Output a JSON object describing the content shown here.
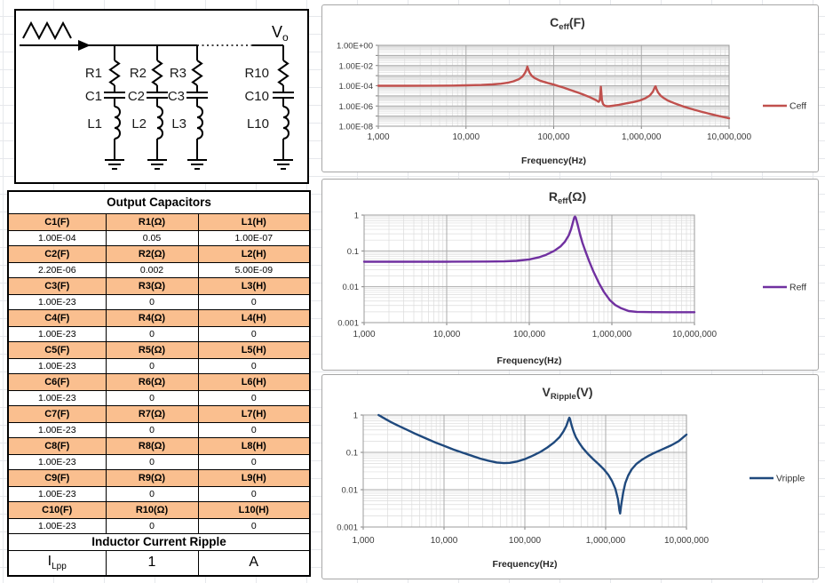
{
  "circuit": {
    "output_main": "V",
    "output_sub": "o",
    "branches": [
      {
        "r": "R1",
        "c": "C1",
        "l": "L1"
      },
      {
        "r": "R2",
        "c": "C2",
        "l": "L2"
      },
      {
        "r": "R3",
        "c": "C3",
        "l": "L3"
      },
      {
        "r": "R10",
        "c": "C10",
        "l": "L10"
      }
    ]
  },
  "table": {
    "title": "Output Capacitors",
    "title_color": "#FF0000",
    "header_fill": "#FABF8F",
    "rows": [
      {
        "c_label": "C1(F)",
        "r_label": "R1(Ω)",
        "l_label": "L1(H)",
        "c": "1.00E-04",
        "r": "0.05",
        "l": "1.00E-07"
      },
      {
        "c_label": "C2(F)",
        "r_label": "R2(Ω)",
        "l_label": "L2(H)",
        "c": "2.20E-06",
        "r": "0.002",
        "l": "5.00E-09"
      },
      {
        "c_label": "C3(F)",
        "r_label": "R3(Ω)",
        "l_label": "L3(H)",
        "c": "1.00E-23",
        "r": "0",
        "l": "0"
      },
      {
        "c_label": "C4(F)",
        "r_label": "R4(Ω)",
        "l_label": "L4(H)",
        "c": "1.00E-23",
        "r": "0",
        "l": "0"
      },
      {
        "c_label": "C5(F)",
        "r_label": "R5(Ω)",
        "l_label": "L5(H)",
        "c": "1.00E-23",
        "r": "0",
        "l": "0"
      },
      {
        "c_label": "C6(F)",
        "r_label": "R6(Ω)",
        "l_label": "L6(H)",
        "c": "1.00E-23",
        "r": "0",
        "l": "0"
      },
      {
        "c_label": "C7(F)",
        "r_label": "R7(Ω)",
        "l_label": "L7(H)",
        "c": "1.00E-23",
        "r": "0",
        "l": "0"
      },
      {
        "c_label": "C8(F)",
        "r_label": "R8(Ω)",
        "l_label": "L8(H)",
        "c": "1.00E-23",
        "r": "0",
        "l": "0"
      },
      {
        "c_label": "C9(F)",
        "r_label": "R9(Ω)",
        "l_label": "L9(H)",
        "c": "1.00E-23",
        "r": "0",
        "l": "0"
      },
      {
        "c_label": "C10(F)",
        "r_label": "R10(Ω)",
        "l_label": "L10(H)",
        "c": "1.00E-23",
        "r": "0",
        "l": "0"
      }
    ],
    "ripple_title": "Inductor Current Ripple",
    "ripple": {
      "label_main": "I",
      "label_sub": "Lpp",
      "value": "1",
      "unit": "A"
    }
  },
  "chart_data": [
    {
      "type": "line",
      "title_main": "C",
      "title_sub": "eff",
      "title_unit": "(F)",
      "xlabel": "Frequency(Hz)",
      "x_scale": "log",
      "y_scale": "log",
      "x_range": [
        1000,
        10000000
      ],
      "y_range": [
        1e-08,
        1
      ],
      "x_ticks": [
        "1,000",
        "10,000",
        "100,000",
        "1,000,000",
        "10,000,000"
      ],
      "y_ticks": [
        "1.00E+00",
        "1.00E-02",
        "1.00E-04",
        "1.00E-06",
        "1.00E-08"
      ],
      "legend": "Ceff",
      "color": "#C0504D",
      "grid": "log-major-minor",
      "legend_position": "right",
      "points": [
        [
          1000,
          0.0001
        ],
        [
          2000,
          0.0001
        ],
        [
          4000,
          0.000102
        ],
        [
          7000,
          0.000105
        ],
        [
          10000,
          0.00011
        ],
        [
          15000,
          0.00012
        ],
        [
          20000,
          0.000135
        ],
        [
          25000,
          0.00016
        ],
        [
          30000,
          0.0002
        ],
        [
          35000,
          0.00028
        ],
        [
          40000,
          0.00045
        ],
        [
          44000,
          0.0008
        ],
        [
          47000,
          0.0018
        ],
        [
          49000,
          0.004
        ],
        [
          50000,
          0.008
        ],
        [
          51500,
          0.004
        ],
        [
          53000,
          0.002
        ],
        [
          56000,
          0.001
        ],
        [
          60000,
          0.0006
        ],
        [
          70000,
          0.00032
        ],
        [
          85000,
          0.00019
        ],
        [
          100000,
          0.00013
        ],
        [
          130000,
          6.5e-05
        ],
        [
          160000,
          3.5e-05
        ],
        [
          200000,
          1.8e-05
        ],
        [
          250000,
          8.5e-06
        ],
        [
          300000,
          4e-06
        ],
        [
          325000,
          2.6e-06
        ],
        [
          335000,
          3.5e-06
        ],
        [
          341000,
          2e-05
        ],
        [
          345000,
          8e-05
        ],
        [
          349000,
          2.5e-05
        ],
        [
          355000,
          4e-06
        ],
        [
          365000,
          1.6e-06
        ],
        [
          380000,
          1.1e-06
        ],
        [
          400000,
          9.5e-07
        ],
        [
          430000,
          9.5e-07
        ],
        [
          470000,
          1.05e-06
        ],
        [
          550000,
          1.3e-06
        ],
        [
          650000,
          1.7e-06
        ],
        [
          800000,
          2.4e-06
        ],
        [
          950000,
          3.4e-06
        ],
        [
          1100000,
          5.5e-06
        ],
        [
          1250000,
          1.1e-05
        ],
        [
          1350000,
          2.5e-05
        ],
        [
          1420000,
          7e-05
        ],
        [
          1450000,
          9e-05
        ],
        [
          1480000,
          5e-05
        ],
        [
          1550000,
          2.2e-05
        ],
        [
          1650000,
          1.1e-05
        ],
        [
          1800000,
          6e-06
        ],
        [
          2000000,
          3.5e-06
        ],
        [
          2400000,
          1.8e-06
        ],
        [
          3000000,
          9e-07
        ],
        [
          4000000,
          4.2e-07
        ],
        [
          5000000,
          2.5e-07
        ],
        [
          7000000,
          1.2e-07
        ],
        [
          10000000,
          6e-08
        ]
      ]
    },
    {
      "type": "line",
      "title_main": "R",
      "title_sub": "eff",
      "title_unit": "(Ω)",
      "xlabel": "Frequency(Hz)",
      "x_scale": "log",
      "y_scale": "log",
      "x_range": [
        1000,
        10000000
      ],
      "y_range": [
        0.001,
        1
      ],
      "x_ticks": [
        "1,000",
        "10,000",
        "100,000",
        "1,000,000",
        "10,000,000"
      ],
      "y_ticks": [
        "1",
        "0.1",
        "0.01",
        "0.001"
      ],
      "legend": "Reff",
      "color": "#7030A0",
      "grid": "log-major-minor",
      "legend_position": "right",
      "points": [
        [
          1000,
          0.05
        ],
        [
          3000,
          0.05
        ],
        [
          10000,
          0.05
        ],
        [
          30000,
          0.0505
        ],
        [
          50000,
          0.051
        ],
        [
          70000,
          0.053
        ],
        [
          100000,
          0.058
        ],
        [
          130000,
          0.066
        ],
        [
          160000,
          0.078
        ],
        [
          200000,
          0.1
        ],
        [
          240000,
          0.135
        ],
        [
          270000,
          0.18
        ],
        [
          300000,
          0.27
        ],
        [
          320000,
          0.4
        ],
        [
          335000,
          0.58
        ],
        [
          345000,
          0.75
        ],
        [
          352000,
          0.87
        ],
        [
          358000,
          0.9
        ],
        [
          365000,
          0.85
        ],
        [
          375000,
          0.68
        ],
        [
          390000,
          0.48
        ],
        [
          410000,
          0.3
        ],
        [
          440000,
          0.17
        ],
        [
          480000,
          0.095
        ],
        [
          530000,
          0.052
        ],
        [
          600000,
          0.026
        ],
        [
          700000,
          0.0125
        ],
        [
          800000,
          0.0072
        ],
        [
          950000,
          0.0042
        ],
        [
          1100000,
          0.0031
        ],
        [
          1300000,
          0.0025
        ],
        [
          1600000,
          0.0021
        ],
        [
          2000000,
          0.002
        ],
        [
          3000000,
          0.00196
        ],
        [
          5000000,
          0.00195
        ],
        [
          10000000,
          0.00195
        ]
      ]
    },
    {
      "type": "line",
      "title_main": "V",
      "title_sub": "Ripple",
      "title_unit": "(V)",
      "xlabel": "Frequency(Hz)",
      "x_scale": "log",
      "y_scale": "log",
      "x_range": [
        1000,
        10000000
      ],
      "y_range": [
        0.001,
        1
      ],
      "x_ticks": [
        "1,000",
        "10,000",
        "100,000",
        "1,000,000",
        "10,000,000"
      ],
      "y_ticks": [
        "1",
        "0.1",
        "0.01",
        "0.001"
      ],
      "legend": "Vripple",
      "color": "#1F497D",
      "grid": "log-major-minor",
      "legend_position": "right",
      "points": [
        [
          1550,
          1.0
        ],
        [
          1800,
          0.83
        ],
        [
          2200,
          0.65
        ],
        [
          2700,
          0.52
        ],
        [
          3500,
          0.4
        ],
        [
          4500,
          0.31
        ],
        [
          6000,
          0.235
        ],
        [
          8000,
          0.18
        ],
        [
          10000,
          0.15
        ],
        [
          13000,
          0.12
        ],
        [
          17000,
          0.098
        ],
        [
          22000,
          0.081
        ],
        [
          28000,
          0.068
        ],
        [
          35000,
          0.06
        ],
        [
          45000,
          0.0535
        ],
        [
          55000,
          0.0515
        ],
        [
          65000,
          0.0525
        ],
        [
          80000,
          0.057
        ],
        [
          100000,
          0.066
        ],
        [
          125000,
          0.081
        ],
        [
          155000,
          0.102
        ],
        [
          190000,
          0.135
        ],
        [
          230000,
          0.185
        ],
        [
          270000,
          0.26
        ],
        [
          300000,
          0.36
        ],
        [
          325000,
          0.5
        ],
        [
          345000,
          0.72
        ],
        [
          355000,
          0.85
        ],
        [
          362000,
          0.8
        ],
        [
          372000,
          0.62
        ],
        [
          385000,
          0.47
        ],
        [
          405000,
          0.34
        ],
        [
          430000,
          0.25
        ],
        [
          470000,
          0.18
        ],
        [
          520000,
          0.131
        ],
        [
          600000,
          0.092
        ],
        [
          700000,
          0.066
        ],
        [
          820000,
          0.048
        ],
        [
          950000,
          0.035
        ],
        [
          1080000,
          0.025
        ],
        [
          1200000,
          0.017
        ],
        [
          1320000,
          0.0105
        ],
        [
          1420000,
          0.0055
        ],
        [
          1480000,
          0.0028
        ],
        [
          1510000,
          0.0023
        ],
        [
          1560000,
          0.004
        ],
        [
          1650000,
          0.0085
        ],
        [
          1750000,
          0.015
        ],
        [
          1900000,
          0.024
        ],
        [
          2100000,
          0.035
        ],
        [
          2400000,
          0.049
        ],
        [
          2800000,
          0.063
        ],
        [
          3300000,
          0.078
        ],
        [
          4000000,
          0.097
        ],
        [
          5000000,
          0.12
        ],
        [
          6500000,
          0.155
        ],
        [
          8000000,
          0.2
        ],
        [
          10000000,
          0.3
        ]
      ]
    }
  ]
}
